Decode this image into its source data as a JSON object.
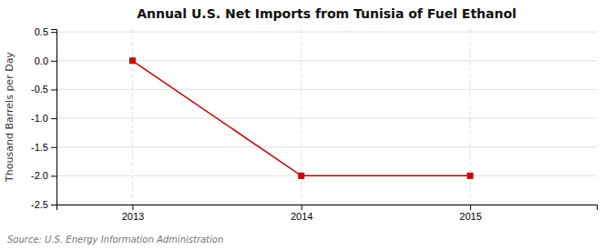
{
  "chart_data": {
    "type": "line",
    "title": "Annual U.S. Net Imports from Tunisia of Fuel Ethanol",
    "ylabel": "Thousand Barrels per Day",
    "source": "Source: U.S. Energy Information Administration",
    "x": [
      2013,
      2014,
      2015
    ],
    "values": [
      0,
      -2,
      -2
    ],
    "color": "#CC0000",
    "marker": "square",
    "xlim": [
      2012.55,
      2015.75
    ],
    "xticks": [
      2013,
      2014,
      2015
    ],
    "ylim": [
      -2.5,
      0.55
    ],
    "yticks": [
      0.5,
      {
        "value": 0.0,
        "label": "0.0"
      },
      -0.5,
      {
        "value": -1.0,
        "label": "-1.0"
      },
      -1.5,
      {
        "value": -2.0,
        "label": "-2.0"
      },
      -2.5
    ],
    "grid": true
  }
}
